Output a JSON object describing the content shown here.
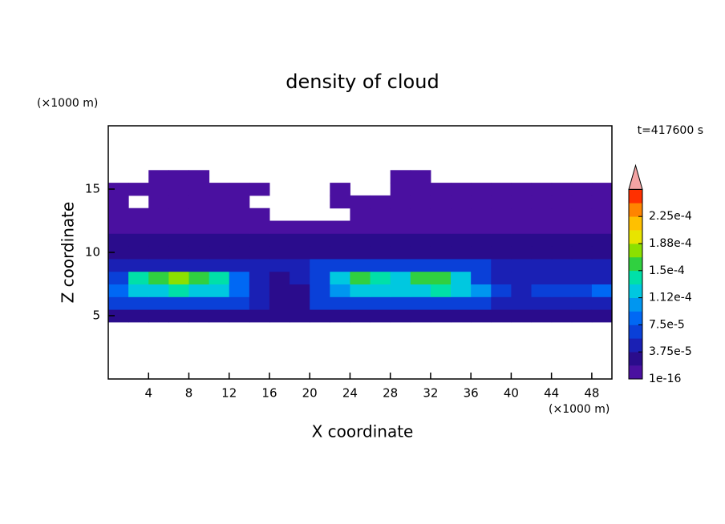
{
  "chart_data": {
    "type": "contour",
    "title": "density of cloud",
    "time_label": "t=417600 s",
    "xlabel": "X coordinate",
    "ylabel": "Z coordinate",
    "x_unit": "(×1000 m)",
    "y_unit": "(×1000 m)",
    "xlim": [
      0,
      50
    ],
    "ylim": [
      0,
      20
    ],
    "xticks": [
      4,
      8,
      12,
      16,
      20,
      24,
      28,
      32,
      36,
      40,
      44,
      48
    ],
    "yticks": [
      5,
      10,
      15
    ],
    "x": [
      1,
      3,
      5,
      7,
      9,
      11,
      13,
      15,
      17,
      19,
      21,
      23,
      25,
      27,
      29,
      31,
      33,
      35,
      37,
      39,
      41,
      43,
      45,
      47,
      49
    ],
    "y": [
      5,
      6,
      7,
      8,
      9,
      10,
      11,
      12,
      13,
      14,
      15,
      16
    ],
    "z": [
      [
        2e-05,
        2e-05,
        2e-05,
        2e-05,
        2e-05,
        2e-05,
        2e-05,
        2e-05,
        2e-05,
        2e-05,
        2e-05,
        2e-05,
        2e-05,
        2e-05,
        2e-05,
        2e-05,
        2e-05,
        2e-05,
        2e-05,
        2e-05,
        2e-05,
        2e-05,
        2e-05,
        2e-05,
        2e-05
      ],
      [
        6e-05,
        6e-05,
        6e-05,
        6e-05,
        6e-05,
        6e-05,
        6e-05,
        5e-05,
        3e-05,
        3e-05,
        7e-05,
        7e-05,
        7e-05,
        7e-05,
        7e-05,
        7e-05,
        7e-05,
        7e-05,
        7e-05,
        4e-05,
        4e-05,
        4e-05,
        4e-05,
        4e-05,
        4e-05
      ],
      [
        9e-05,
        0.00012,
        0.00013,
        0.000135,
        0.00013,
        0.00012,
        9e-05,
        5e-05,
        3e-05,
        3e-05,
        6e-05,
        0.00011,
        0.000125,
        0.00013,
        0.00012,
        0.00013,
        0.000135,
        0.000125,
        0.0001,
        6e-05,
        5e-05,
        6e-05,
        6e-05,
        7e-05,
        8e-05
      ],
      [
        7e-05,
        0.000145,
        0.00016,
        0.00017,
        0.00016,
        0.00014,
        8e-05,
        5e-05,
        3e-05,
        4e-05,
        6e-05,
        0.00013,
        0.00015,
        0.000145,
        0.00013,
        0.00016,
        0.000155,
        0.00013,
        6e-05,
        5e-05,
        5e-05,
        5e-05,
        5e-05,
        5e-05,
        5e-05
      ],
      [
        5e-05,
        5e-05,
        5e-05,
        5e-05,
        5e-05,
        5e-05,
        5e-05,
        4e-05,
        4e-05,
        4e-05,
        6e-05,
        6e-05,
        6e-05,
        6e-05,
        6e-05,
        6e-05,
        6e-05,
        6e-05,
        6e-05,
        4e-05,
        4e-05,
        4e-05,
        4e-05,
        4e-05,
        4e-05
      ],
      [
        3e-05,
        3e-05,
        3e-05,
        3e-05,
        3e-05,
        3e-05,
        3e-05,
        3e-05,
        3e-05,
        3e-05,
        3e-05,
        3e-05,
        3e-05,
        3e-05,
        3e-05,
        3e-05,
        3e-05,
        3e-05,
        3e-05,
        3e-05,
        3e-05,
        3e-05,
        3e-05,
        3e-05,
        3e-05
      ],
      [
        2.5e-05,
        2.5e-05,
        2.5e-05,
        2.5e-05,
        2.5e-05,
        2.5e-05,
        2.5e-05,
        2.5e-05,
        2.5e-05,
        2.5e-05,
        2.5e-05,
        2.5e-05,
        2.5e-05,
        2.5e-05,
        2.5e-05,
        2.5e-05,
        2.5e-05,
        2.5e-05,
        2.5e-05,
        2.5e-05,
        2.5e-05,
        2.5e-05,
        2.5e-05,
        2.5e-05,
        2.5e-05
      ],
      [
        1.5e-05,
        1.5e-05,
        1.5e-05,
        1.5e-05,
        1.5e-05,
        1.5e-05,
        1.5e-05,
        1.5e-05,
        1.5e-05,
        1.5e-05,
        1.5e-05,
        1.5e-05,
        1.5e-05,
        1.5e-05,
        1.5e-05,
        1.5e-05,
        1.5e-05,
        1.5e-05,
        1.5e-05,
        1.5e-05,
        1.5e-05,
        1.5e-05,
        1.5e-05,
        1.5e-05,
        1.5e-05
      ],
      [
        1e-05,
        1e-05,
        1e-05,
        1e-05,
        1e-05,
        1e-05,
        1e-05,
        1e-05,
        null,
        null,
        null,
        null,
        1e-05,
        1e-05,
        1e-05,
        1e-05,
        1e-05,
        1e-05,
        1e-05,
        1e-05,
        1e-05,
        1e-05,
        1e-05,
        1e-05,
        1e-05
      ],
      [
        1e-05,
        null,
        1e-05,
        1e-05,
        1e-05,
        1e-05,
        1e-05,
        null,
        null,
        null,
        null,
        1e-05,
        1e-05,
        1e-05,
        1e-05,
        1e-05,
        1e-05,
        1e-05,
        1e-05,
        1e-05,
        1e-05,
        1e-05,
        1e-05,
        1e-05,
        1e-05
      ],
      [
        1e-05,
        1e-05,
        1e-05,
        1e-05,
        1e-05,
        1e-05,
        1e-05,
        1e-05,
        null,
        null,
        null,
        1e-05,
        null,
        null,
        1e-05,
        1e-05,
        1e-05,
        1e-05,
        1e-05,
        1e-05,
        1e-05,
        1e-05,
        1e-05,
        1e-05,
        1e-05
      ],
      [
        null,
        null,
        1e-05,
        1e-05,
        1e-05,
        null,
        null,
        null,
        null,
        null,
        null,
        null,
        null,
        null,
        1e-05,
        1e-05,
        null,
        null,
        null,
        null,
        null,
        null,
        null,
        null,
        null
      ]
    ],
    "levels": [
      1e-16,
      1.875e-05,
      3.75e-05,
      5.625e-05,
      7.5e-05,
      9.375e-05,
      0.0001125,
      0.00013125,
      0.00015,
      0.00016875,
      0.0001875,
      0.00020625,
      0.000225,
      0.00024375
    ],
    "colors": [
      "#4a10a0",
      "#2a0c8c",
      "#1a20b4",
      "#0a40d8",
      "#0068f4",
      "#0096f0",
      "#00c8e0",
      "#00e0a8",
      "#30d040",
      "#8ce000",
      "#e8e400",
      "#ffc000",
      "#ff8400",
      "#ff3000"
    ],
    "extend_color": "#f4a4a4",
    "colorbar_ticks": [
      {
        "value": 1e-16,
        "label": "1e-16"
      },
      {
        "value": 3.75e-05,
        "label": "3.75e-5"
      },
      {
        "value": 7.5e-05,
        "label": "7.5e-5"
      },
      {
        "value": 0.0001125,
        "label": "1.12e-4"
      },
      {
        "value": 0.00015,
        "label": "1.5e-4"
      },
      {
        "value": 0.0001875,
        "label": "1.88e-4"
      },
      {
        "value": 0.000225,
        "label": "2.25e-4"
      }
    ]
  }
}
